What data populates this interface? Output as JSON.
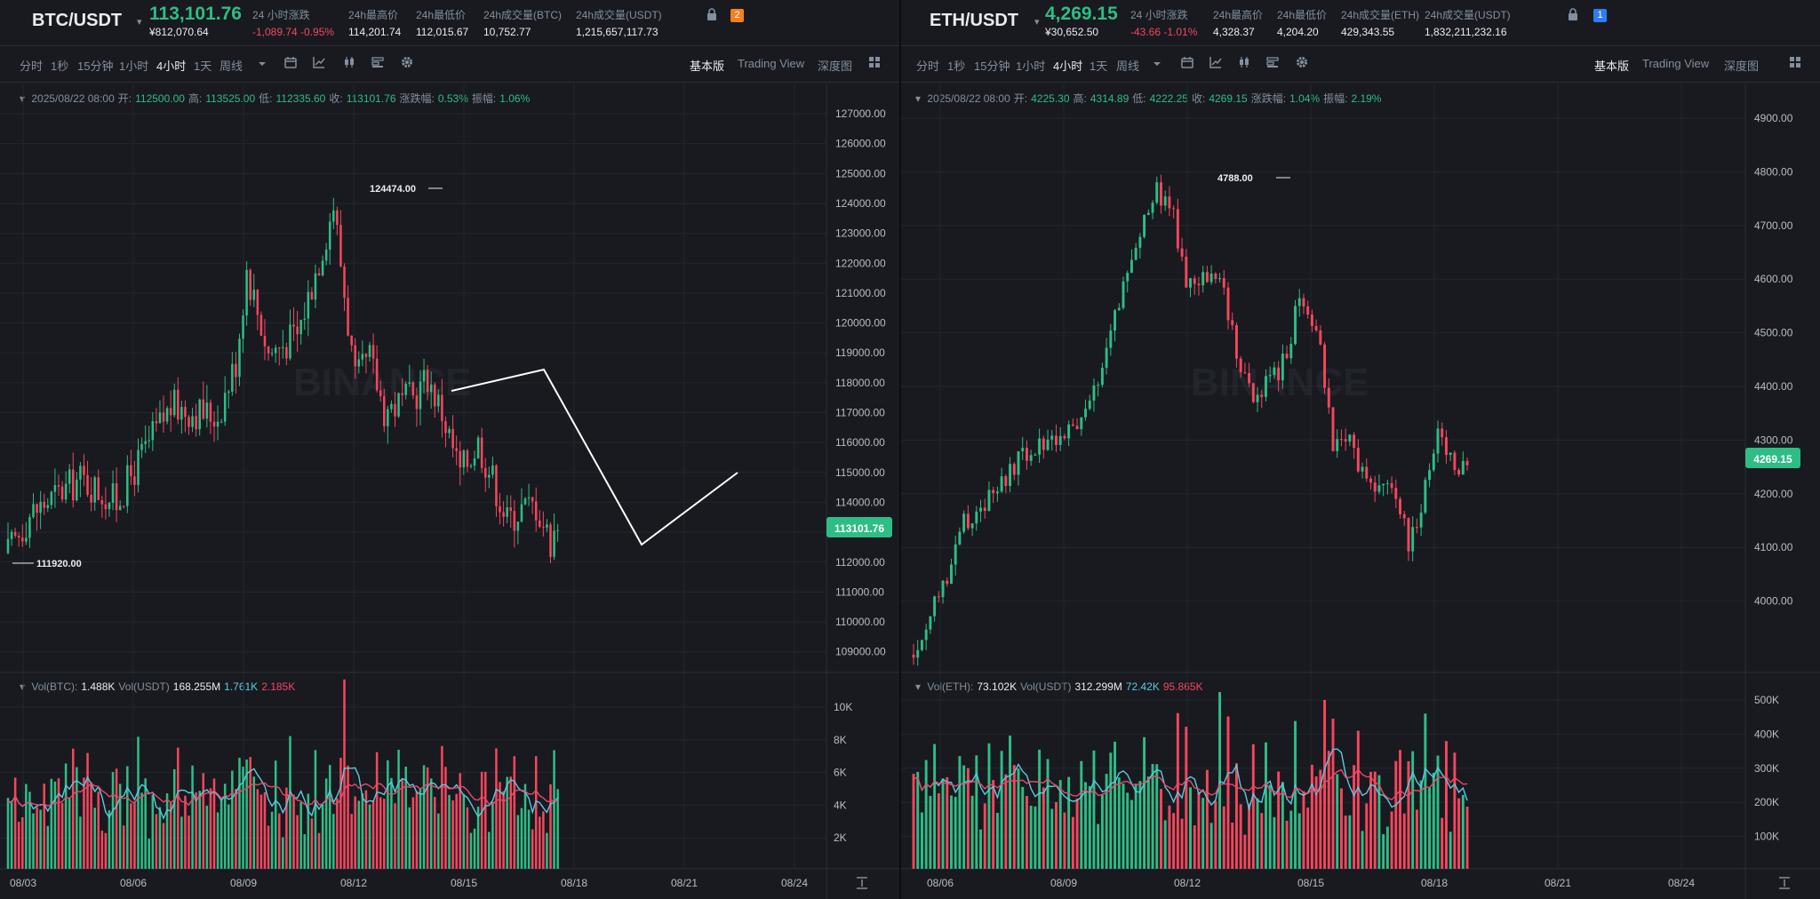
{
  "colors": {
    "up": "#2ebd85",
    "down": "#f6465d",
    "bg": "#181a20",
    "grid": "#22262d",
    "ma1": "#5cc9e0",
    "ma2": "#e8496a",
    "text_muted": "#848e9c"
  },
  "watermark": "BINANCE",
  "toolbar": {
    "intervals": [
      "分时",
      "1秒",
      "15分钟",
      "1小时",
      "4小时",
      "1天",
      "周线"
    ],
    "active_interval": "4小时",
    "icons": [
      "dropdown-caret-icon",
      "calendar-icon",
      "indicator-icon",
      "candle-type-icon",
      "layout-settings-icon",
      "gear-icon"
    ],
    "views": [
      "基本版",
      "Trading View",
      "深度图"
    ],
    "active_view": "基本版"
  },
  "panels": [
    {
      "symbol": "BTC/USDT",
      "price": "113,101.76",
      "price_cny": "¥812,070.64",
      "stats": [
        {
          "label": "24 小时涨跌",
          "value": "-1,089.74 -0.95%",
          "neg": true
        },
        {
          "label": "24h最高价",
          "value": "114,201.74"
        },
        {
          "label": "24h最低价",
          "value": "112,015.67"
        },
        {
          "label": "24h成交量(BTC)",
          "value": "10,752.77"
        },
        {
          "label": "24h成交量(USDT)",
          "value": "1,215,657,117.73"
        }
      ],
      "badge": "2",
      "badge_color": "#f0821e",
      "ohlc": {
        "date": "2025/08/22 08:00",
        "open_label": "开:",
        "open": "112500.00",
        "high_label": "高:",
        "high": "113525.00",
        "low_label": "低:",
        "low": "112335.60",
        "close_label": "收:",
        "close": "113101.76",
        "chg_label": "涨跌幅:",
        "chg": "0.53%",
        "amp_label": "振幅:",
        "amp": "1.06%"
      },
      "vol": {
        "label1": "Vol(BTC):",
        "v1": "1.488K",
        "label2": "Vol(USDT)",
        "v2": "168.255M",
        "ma1": "1.761K",
        "ma2": "2.185K"
      },
      "price_ticks": [
        "127000.00",
        "126000.00",
        "125000.00",
        "124000.00",
        "123000.00",
        "122000.00",
        "121000.00",
        "120000.00",
        "119000.00",
        "118000.00",
        "117000.00",
        "116000.00",
        "115000.00",
        "114000.00",
        "113000.00",
        "112000.00",
        "111000.00",
        "110000.00",
        "109000.00"
      ],
      "vol_ticks": [
        "10K",
        "8K",
        "6K",
        "4K",
        "2K"
      ],
      "dates": [
        "08/03",
        "08/06",
        "08/09",
        "08/12",
        "08/15",
        "08/18",
        "08/21",
        "08/24"
      ],
      "current_price_tag": "113101.76",
      "high_annotation": "124474.00",
      "low_annotation": "111920.00"
    },
    {
      "symbol": "ETH/USDT",
      "price": "4,269.15",
      "price_cny": "¥30,652.50",
      "stats": [
        {
          "label": "24 小时涨跌",
          "value": "-43.66 -1.01%",
          "neg": true
        },
        {
          "label": "24h最高价",
          "value": "4,328.37"
        },
        {
          "label": "24h最低价",
          "value": "4,204.20"
        },
        {
          "label": "24h成交量(ETH)",
          "value": "429,343.55"
        },
        {
          "label": "24h成交量(USDT)",
          "value": "1,832,211,232.16"
        }
      ],
      "badge": "1",
      "badge_color": "#2f7ef0",
      "ohlc": {
        "date": "2025/08/22 08:00",
        "open_label": "开:",
        "open": "4225.30",
        "high_label": "高:",
        "high": "4314.89",
        "low_label": "低:",
        "low": "4222.25",
        "close_label": "收:",
        "close": "4269.15",
        "chg_label": "涨跌幅:",
        "chg": "1.04%",
        "amp_label": "振幅:",
        "amp": "2.19%"
      },
      "vol": {
        "label1": "Vol(ETH):",
        "v1": "73.102K",
        "label2": "Vol(USDT)",
        "v2": "312.299M",
        "ma1": "72.42K",
        "ma2": "95.865K"
      },
      "price_ticks": [
        "4900.00",
        "4800.00",
        "4700.00",
        "4600.00",
        "4500.00",
        "4400.00",
        "4300.00",
        "4200.00",
        "4100.00",
        "4000.00"
      ],
      "vol_ticks": [
        "500K",
        "400K",
        "300K",
        "200K",
        "100K"
      ],
      "dates": [
        "08/06",
        "08/09",
        "08/12",
        "08/15",
        "08/18",
        "08/21",
        "08/24"
      ],
      "current_price_tag": "4269.15",
      "high_annotation": "4788.00"
    }
  ]
}
